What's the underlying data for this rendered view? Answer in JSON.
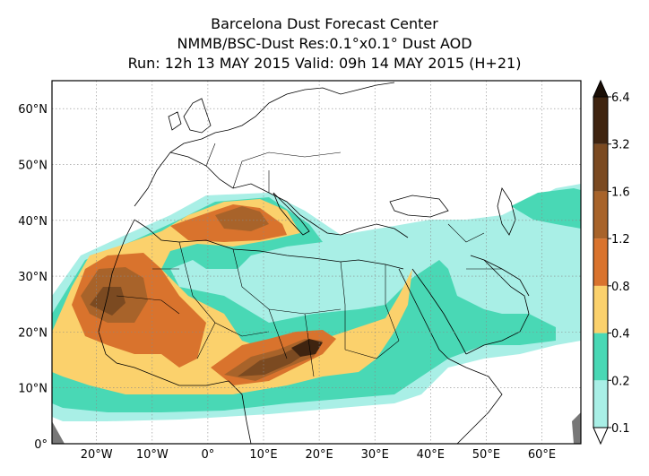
{
  "header": {
    "line1": "Barcelona Dust Forecast Center",
    "line2": "NMMB/BSC-Dust   Res:0.1°x0.1°   Dust AOD",
    "line3": "Run: 12h 13 MAY 2015   Valid: 09h 14 MAY 2015 (H+21)"
  },
  "map": {
    "lon_range": [
      -28,
      67
    ],
    "lat_range": [
      0,
      65
    ],
    "lon_ticks": [
      {
        "value": -20,
        "label": "20°W"
      },
      {
        "value": -10,
        "label": "10°W"
      },
      {
        "value": 0,
        "label": "0°"
      },
      {
        "value": 10,
        "label": "10°E"
      },
      {
        "value": 20,
        "label": "20°E"
      },
      {
        "value": 30,
        "label": "30°E"
      },
      {
        "value": 40,
        "label": "40°E"
      },
      {
        "value": 50,
        "label": "50°E"
      },
      {
        "value": 60,
        "label": "60°E"
      }
    ],
    "lat_ticks": [
      {
        "value": 0,
        "label": "0°"
      },
      {
        "value": 10,
        "label": "10°N"
      },
      {
        "value": 20,
        "label": "20°N"
      },
      {
        "value": 30,
        "label": "30°N"
      },
      {
        "value": 40,
        "label": "40°N"
      },
      {
        "value": 50,
        "label": "50°N"
      },
      {
        "value": 60,
        "label": "60°N"
      }
    ],
    "gridlines": true
  },
  "colorbar": {
    "levels": [
      "0.1",
      "0.2",
      "0.4",
      "0.8",
      "1.2",
      "1.6",
      "3.2",
      "6.4"
    ],
    "colors": [
      "#a9efe6",
      "#49d8b5",
      "#fbd16c",
      "#d9732d",
      "#a8632a",
      "#7b4a21",
      "#3f2410"
    ],
    "extend": "both"
  }
}
